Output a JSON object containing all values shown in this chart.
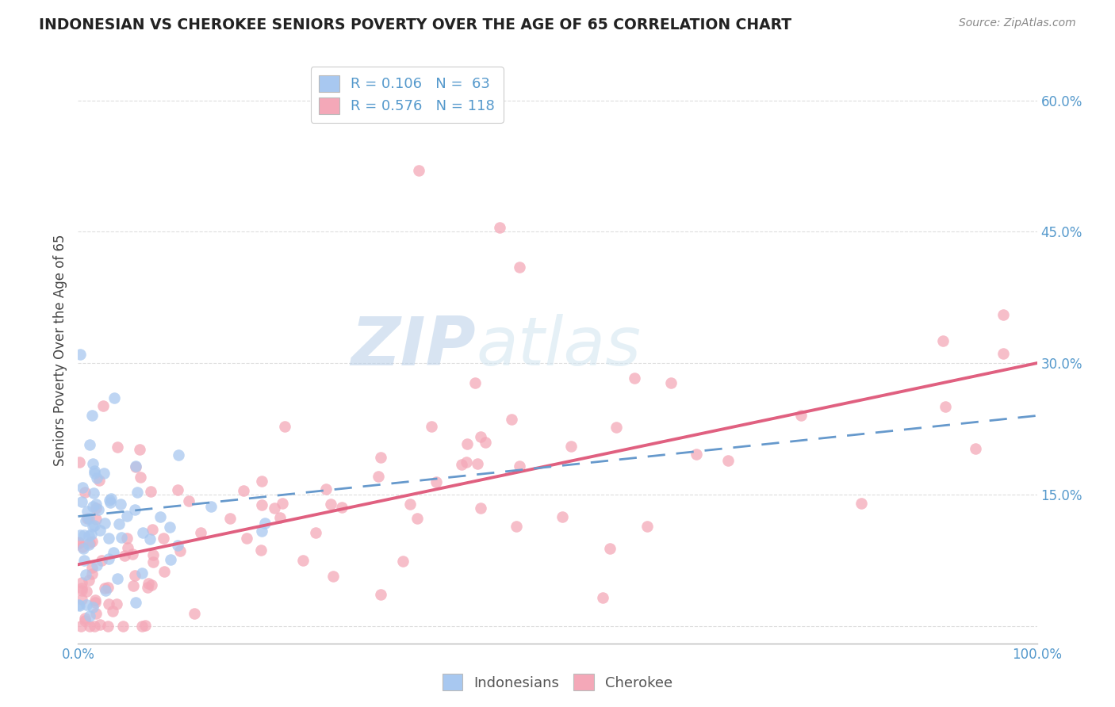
{
  "title": "INDONESIAN VS CHEROKEE SENIORS POVERTY OVER THE AGE OF 65 CORRELATION CHART",
  "source_text": "Source: ZipAtlas.com",
  "ylabel": "Seniors Poverty Over the Age of 65",
  "xlim": [
    0.0,
    1.0
  ],
  "ylim": [
    -0.02,
    0.65
  ],
  "xticks": [
    0.0,
    0.1,
    0.2,
    0.3,
    0.4,
    0.5,
    0.6,
    0.7,
    0.8,
    0.9,
    1.0
  ],
  "xticklabels": [
    "0.0%",
    "",
    "",
    "",
    "",
    "",
    "",
    "",
    "",
    "",
    "100.0%"
  ],
  "yticks": [
    0.0,
    0.15,
    0.3,
    0.45,
    0.6
  ],
  "yticklabels": [
    "",
    "15.0%",
    "30.0%",
    "45.0%",
    "60.0%"
  ],
  "indonesian_R": 0.106,
  "indonesian_N": 63,
  "cherokee_R": 0.576,
  "cherokee_N": 118,
  "indonesian_color": "#a8c8f0",
  "cherokee_color": "#f4a8b8",
  "indonesian_line_color": "#6699cc",
  "cherokee_line_color": "#e06080",
  "background_color": "#ffffff",
  "watermark_color": "#cce0f5",
  "title_color": "#222222",
  "source_color": "#888888",
  "tick_color": "#5599cc",
  "ylabel_color": "#444444",
  "grid_color": "#dddddd"
}
